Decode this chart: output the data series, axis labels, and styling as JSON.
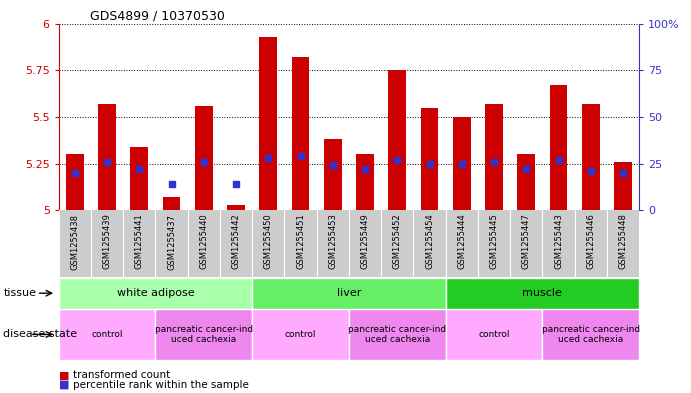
{
  "title": "GDS4899 / 10370530",
  "samples": [
    "GSM1255438",
    "GSM1255439",
    "GSM1255441",
    "GSM1255437",
    "GSM1255440",
    "GSM1255442",
    "GSM1255450",
    "GSM1255451",
    "GSM1255453",
    "GSM1255449",
    "GSM1255452",
    "GSM1255454",
    "GSM1255444",
    "GSM1255445",
    "GSM1255447",
    "GSM1255443",
    "GSM1255446",
    "GSM1255448"
  ],
  "bar_heights": [
    5.3,
    5.57,
    5.34,
    5.07,
    5.56,
    5.03,
    5.93,
    5.82,
    5.38,
    5.3,
    5.75,
    5.55,
    5.5,
    5.57,
    5.3,
    5.67,
    5.57,
    5.26
  ],
  "percentile_ranks": [
    20,
    26,
    22,
    14,
    26,
    14,
    28,
    29,
    24,
    22,
    27,
    25,
    25,
    26,
    22,
    27,
    21,
    20
  ],
  "ymin": 5.0,
  "ymax": 6.0,
  "yticks": [
    5.0,
    5.25,
    5.5,
    5.75,
    6.0
  ],
  "ytick_labels": [
    "5",
    "5.25",
    "5.5",
    "5.75",
    "6"
  ],
  "right_yticks": [
    0,
    25,
    50,
    75,
    100
  ],
  "right_ytick_labels": [
    "0",
    "25",
    "50",
    "75",
    "100%"
  ],
  "bar_color": "#cc0000",
  "dot_color": "#3333cc",
  "bar_width": 0.55,
  "tissue_groups": [
    {
      "label": "white adipose",
      "start": 0,
      "end": 6,
      "color": "#aaffaa"
    },
    {
      "label": "liver",
      "start": 6,
      "end": 12,
      "color": "#66ee66"
    },
    {
      "label": "muscle",
      "start": 12,
      "end": 18,
      "color": "#22cc22"
    }
  ],
  "disease_groups": [
    {
      "label": "control",
      "start": 0,
      "end": 3,
      "color": "#ffaaff"
    },
    {
      "label": "pancreatic cancer-ind\nuced cachexia",
      "start": 3,
      "end": 6,
      "color": "#ee88ee"
    },
    {
      "label": "control",
      "start": 6,
      "end": 9,
      "color": "#ffaaff"
    },
    {
      "label": "pancreatic cancer-ind\nuced cachexia",
      "start": 9,
      "end": 12,
      "color": "#ee88ee"
    },
    {
      "label": "control",
      "start": 12,
      "end": 15,
      "color": "#ffaaff"
    },
    {
      "label": "pancreatic cancer-ind\nuced cachexia",
      "start": 15,
      "end": 18,
      "color": "#ee88ee"
    }
  ],
  "legend_items": [
    {
      "label": "transformed count",
      "color": "#cc0000"
    },
    {
      "label": "percentile rank within the sample",
      "color": "#3333cc"
    }
  ],
  "tissue_row_label": "tissue",
  "disease_row_label": "disease state",
  "left_axis_color": "#cc0000",
  "right_axis_color": "#3333cc",
  "sample_bg_color": "#cccccc",
  "background_color": "#ffffff"
}
